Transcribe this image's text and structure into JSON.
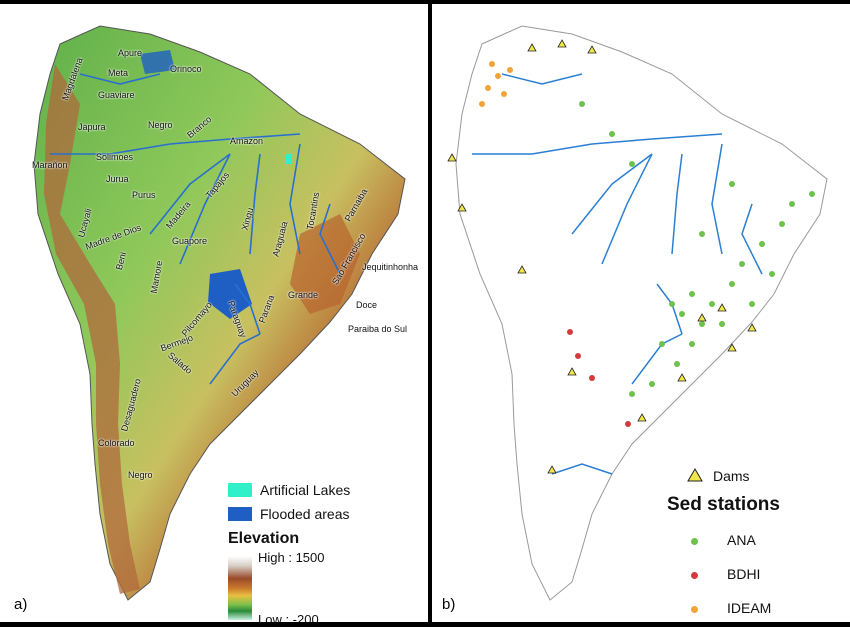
{
  "panel_a": {
    "label": "a)",
    "rivers": [
      "Apure",
      "Meta",
      "Orinoco",
      "Guaviare",
      "Magdalena",
      "Negro",
      "Branco",
      "Japura",
      "Amazon",
      "Solimoes",
      "Marañon",
      "Jurua",
      "Purus",
      "Madeira",
      "Tapajos",
      "Xingu",
      "Tocantins",
      "Parnaiba",
      "Ucayali",
      "Madre de Dios",
      "Guapore",
      "Araguaia",
      "Beni",
      "Mamore",
      "Sao Francisco",
      "Jequitinhonha",
      "Grande",
      "Doce",
      "Parana",
      "Pilcomayo",
      "Paraguay",
      "Paraiba do Sul",
      "Bermejo",
      "Salado",
      "Uruguay",
      "Desaguadero",
      "Colorado",
      "Negro"
    ],
    "legend": {
      "artificial_lakes": "Artificial Lakes",
      "flooded_areas": "Flooded areas",
      "elevation_title": "Elevation",
      "high": "High : 1500",
      "low": "Low : -200",
      "colors": {
        "artificial_lakes": "#2ff0c8",
        "flooded_areas": "#1f5fc4"
      }
    }
  },
  "panel_b": {
    "label": "b)",
    "legend": {
      "dams": "Dams",
      "sed_stations": "Sed stations",
      "ana": "ANA",
      "bdhi": "BDHI",
      "ideam": "IDEAM",
      "colors": {
        "dams": "#f2e64a",
        "ana": "#6cc24a",
        "bdhi": "#d23b3b",
        "ideam": "#f2a43a",
        "river": "#2a7fd4"
      }
    }
  }
}
